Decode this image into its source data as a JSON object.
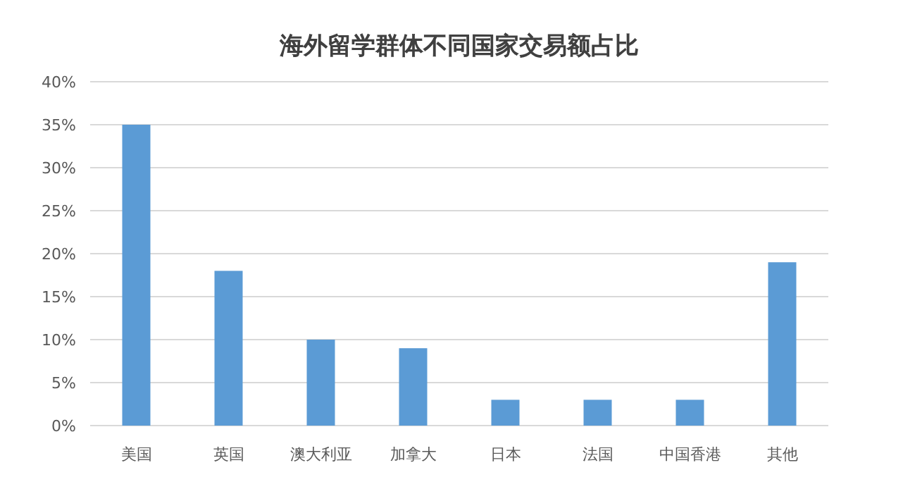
{
  "chart_data": {
    "type": "bar",
    "title": "海外留学群体不同国家交易额占比",
    "categories": [
      "美国",
      "英国",
      "澳大利亚",
      "加拿大",
      "日本",
      "法国",
      "中国香港",
      "其他"
    ],
    "values": [
      35,
      18,
      10,
      9,
      3,
      3,
      3,
      19
    ],
    "color": "#5b9bd5",
    "ylim": [
      0,
      40
    ],
    "yticks": [
      {
        "value": 0,
        "label": "0%"
      },
      {
        "value": 5,
        "label": "5%"
      },
      {
        "value": 10,
        "label": "10%"
      },
      {
        "value": 15,
        "label": "15%"
      },
      {
        "value": 20,
        "label": "20%"
      },
      {
        "value": 25,
        "label": "25%"
      },
      {
        "value": 30,
        "label": "30%"
      },
      {
        "value": 35,
        "label": "35%"
      },
      {
        "value": 40,
        "label": "40%"
      }
    ],
    "grid": "y"
  }
}
